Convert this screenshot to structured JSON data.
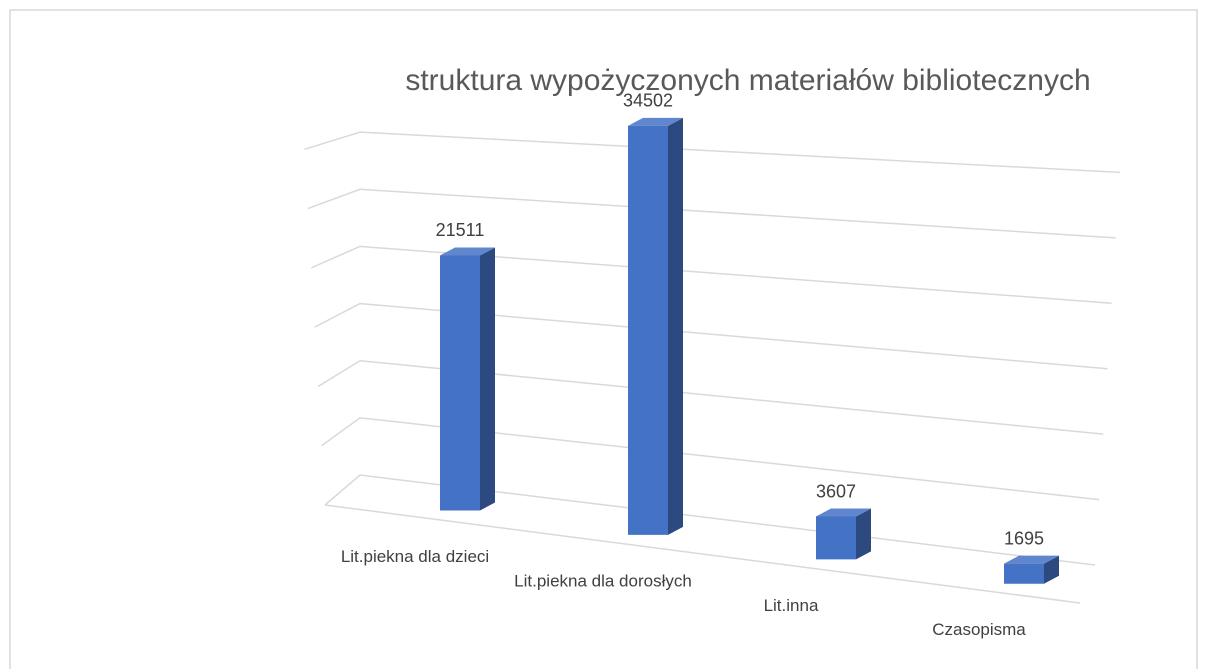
{
  "chart_data": {
    "type": "bar3d",
    "title": "struktura wypożyczonych materiałów bibliotecznych",
    "categories": [
      "Lit.piekna dla dzieci",
      "Lit.piekna dla dorosłych",
      "Lit.inna",
      "Czasopisma"
    ],
    "values": [
      21511,
      34502,
      3607,
      1695
    ],
    "color": "#4472c4",
    "ylim": [
      0,
      35000
    ],
    "yticks": [
      0,
      5000,
      10000,
      15000,
      20000,
      25000,
      30000
    ],
    "grid": true
  }
}
